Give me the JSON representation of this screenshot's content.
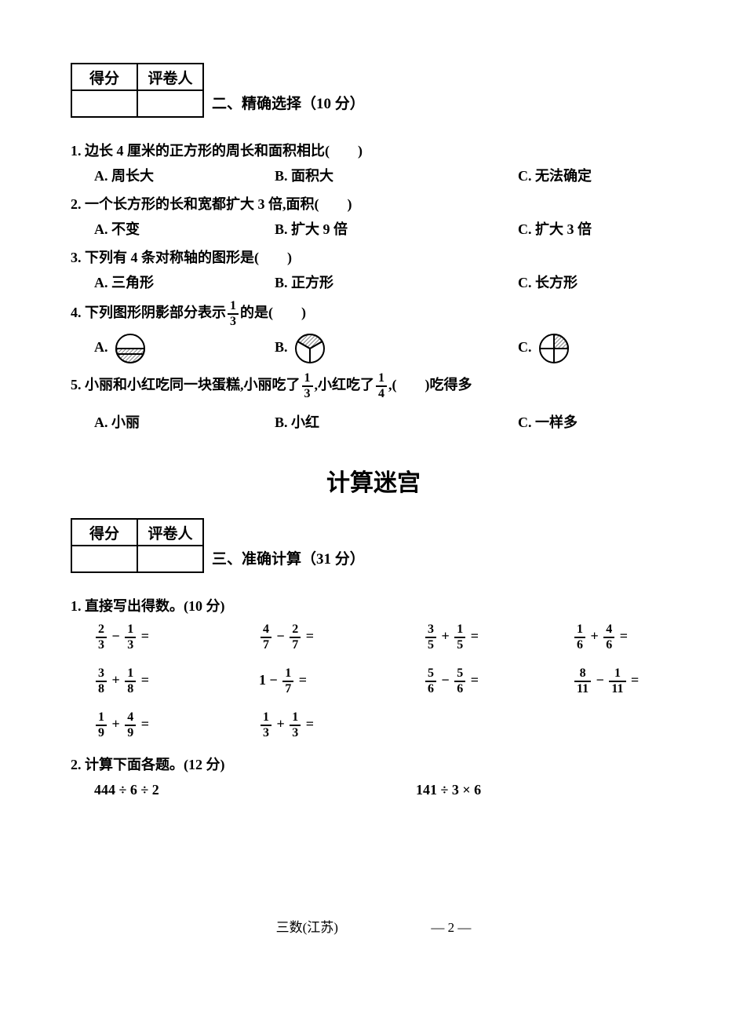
{
  "scoreTable": {
    "h1": "得分",
    "h2": "评卷人"
  },
  "sec2": {
    "title": "二、精确选择（10 分）"
  },
  "q1": {
    "stem": "1. 边长 4 厘米的正方形的周长和面积相比(　　)",
    "a": "A. 周长大",
    "b": "B. 面积大",
    "c": "C. 无法确定"
  },
  "q2": {
    "stem": "2. 一个长方形的长和宽都扩大 3 倍,面积(　　)",
    "a": "A. 不变",
    "b": "B. 扩大 9 倍",
    "c": "C. 扩大 3 倍"
  },
  "q3": {
    "stem": "3. 下列有 4 条对称轴的图形是(　　)",
    "a": "A. 三角形",
    "b": "B. 正方形",
    "c": "C. 长方形"
  },
  "q4": {
    "stemPre": "4. 下列图形阴影部分表示",
    "fracN": "1",
    "fracD": "3",
    "stemPost": "的是(　　)",
    "a": "A.",
    "b": "B.",
    "c": "C.",
    "svg": {
      "radius": 18,
      "stroke": "#000",
      "strokeW": 2,
      "hatchColor": "#808080"
    }
  },
  "q5": {
    "pre": "5. 小丽和小红吃同一块蛋糕,小丽吃了",
    "f1n": "1",
    "f1d": "3",
    "mid": ",小红吃了",
    "f2n": "1",
    "f2d": "4",
    "post": ",(　　)吃得多",
    "a": "A. 小丽",
    "b": "B. 小红",
    "c": "C. 一样多"
  },
  "bigTitle": "计算迷宫",
  "sec3": {
    "title": "三、准确计算（31 分）"
  },
  "sub1": {
    "title": "1. 直接写出得数。(10 分)"
  },
  "fracOps": [
    {
      "an": "2",
      "ad": "3",
      "op": "−",
      "bn": "1",
      "bd": "3"
    },
    {
      "an": "4",
      "ad": "7",
      "op": "−",
      "bn": "2",
      "bd": "7"
    },
    {
      "an": "3",
      "ad": "5",
      "op": "+",
      "bn": "1",
      "bd": "5"
    },
    {
      "an": "1",
      "ad": "6",
      "op": "+",
      "bn": "4",
      "bd": "6"
    },
    {
      "an": "3",
      "ad": "8",
      "op": "+",
      "bn": "1",
      "bd": "8"
    },
    {
      "whole": "1",
      "op": "−",
      "bn": "1",
      "bd": "7"
    },
    {
      "an": "5",
      "ad": "6",
      "op": "−",
      "bn": "5",
      "bd": "6"
    },
    {
      "an": "8",
      "ad": "11",
      "op": "−",
      "bn": "1",
      "bd": "11"
    },
    {
      "an": "1",
      "ad": "9",
      "op": "+",
      "bn": "4",
      "bd": "9"
    },
    {
      "an": "1",
      "ad": "3",
      "op": "+",
      "bn": "1",
      "bd": "3"
    }
  ],
  "sub2": {
    "title": "2. 计算下面各题。(12 分)"
  },
  "calc2": {
    "a": "444 ÷ 6 ÷ 2",
    "b": "141 ÷ 3 × 6"
  },
  "footer": {
    "left": "三数(江苏)",
    "right": "— 2 —"
  }
}
